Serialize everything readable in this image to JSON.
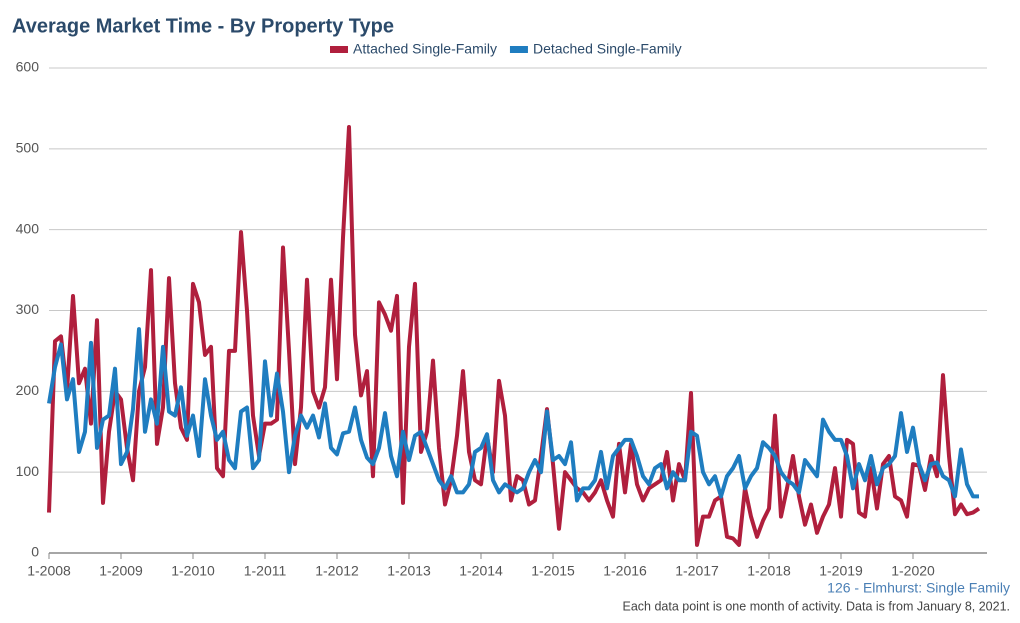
{
  "chart_data": {
    "type": "line",
    "title": "Average Market Time - By Property Type",
    "footnotes": [
      "126 - Elmhurst: Single Family",
      "Each data point is one month of activity. Data is from January 8, 2021."
    ],
    "categories": [
      "1-2008",
      null,
      null,
      null,
      null,
      null,
      null,
      null,
      null,
      null,
      null,
      null,
      "1-2009",
      null,
      null,
      null,
      null,
      null,
      null,
      null,
      null,
      null,
      null,
      null,
      "1-2010",
      null,
      null,
      null,
      null,
      null,
      null,
      null,
      null,
      null,
      null,
      null,
      "1-2011",
      null,
      null,
      null,
      null,
      null,
      null,
      null,
      null,
      null,
      null,
      null,
      "1-2012",
      null,
      null,
      null,
      null,
      null,
      null,
      null,
      null,
      null,
      null,
      null,
      "1-2013",
      null,
      null,
      null,
      null,
      null,
      null,
      null,
      null,
      null,
      null,
      null,
      "1-2014",
      null,
      null,
      null,
      null,
      null,
      null,
      null,
      null,
      null,
      null,
      null,
      "1-2015",
      null,
      null,
      null,
      null,
      null,
      null,
      null,
      null,
      null,
      null,
      null,
      "1-2016",
      null,
      null,
      null,
      null,
      null,
      null,
      null,
      null,
      null,
      null,
      null,
      "1-2017",
      null,
      null,
      null,
      null,
      null,
      null,
      null,
      null,
      null,
      null,
      null,
      "1-2018",
      null,
      null,
      null,
      null,
      null,
      null,
      null,
      null,
      null,
      null,
      null,
      "1-2019",
      null,
      null,
      null,
      null,
      null,
      null,
      null,
      null,
      null,
      null,
      null,
      "1-2020",
      null,
      null,
      null,
      null,
      null,
      null,
      null,
      null,
      null,
      null,
      null
    ],
    "series": [
      {
        "name": "Attached Single-Family",
        "color": "#b01f3d",
        "values": [
          50,
          262,
          268,
          200,
          318,
          210,
          228,
          160,
          288,
          62,
          150,
          200,
          190,
          130,
          90,
          200,
          230,
          350,
          135,
          180,
          340,
          210,
          155,
          140,
          333,
          310,
          245,
          255,
          105,
          95,
          250,
          250,
          397,
          300,
          170,
          120,
          160,
          160,
          165,
          378,
          250,
          110,
          180,
          338,
          200,
          180,
          205,
          338,
          215,
          390,
          527,
          270,
          195,
          225,
          95,
          310,
          295,
          275,
          318,
          62,
          255,
          333,
          125,
          150,
          238,
          130,
          60,
          90,
          145,
          225,
          125,
          90,
          85,
          145,
          100,
          213,
          170,
          65,
          95,
          90,
          60,
          65,
          120,
          178,
          110,
          30,
          100,
          90,
          80,
          75,
          65,
          75,
          90,
          65,
          45,
          135,
          75,
          135,
          85,
          65,
          80,
          85,
          90,
          125,
          65,
          110,
          90,
          198,
          10,
          45,
          45,
          65,
          70,
          20,
          18,
          10,
          80,
          45,
          20,
          40,
          55,
          170,
          45,
          80,
          120,
          70,
          35,
          60,
          25,
          45,
          60,
          105,
          45,
          140,
          135,
          50,
          45,
          105,
          55,
          110,
          120,
          70,
          65,
          45,
          110,
          108,
          78,
          120,
          95,
          220,
          120,
          48,
          60,
          48,
          50,
          55
        ]
      },
      {
        "name": "Detached Single-Family",
        "color": "#1f7dc0",
        "values": [
          185,
          230,
          258,
          190,
          215,
          125,
          150,
          260,
          130,
          165,
          170,
          228,
          110,
          125,
          178,
          277,
          150,
          190,
          160,
          255,
          175,
          170,
          205,
          145,
          170,
          120,
          215,
          170,
          140,
          150,
          115,
          105,
          175,
          180,
          105,
          115,
          237,
          170,
          222,
          175,
          100,
          145,
          170,
          155,
          170,
          143,
          185,
          130,
          122,
          148,
          150,
          180,
          140,
          118,
          110,
          130,
          173,
          120,
          95,
          150,
          115,
          145,
          150,
          130,
          110,
          90,
          80,
          95,
          75,
          75,
          85,
          125,
          130,
          147,
          90,
          75,
          85,
          80,
          75,
          80,
          100,
          115,
          100,
          175,
          115,
          120,
          110,
          137,
          65,
          80,
          80,
          90,
          125,
          80,
          120,
          130,
          140,
          140,
          120,
          95,
          85,
          105,
          110,
          80,
          100,
          90,
          90,
          150,
          145,
          100,
          85,
          95,
          70,
          95,
          105,
          120,
          80,
          95,
          105,
          137,
          130,
          120,
          100,
          90,
          85,
          75,
          115,
          105,
          95,
          165,
          150,
          140,
          140,
          120,
          80,
          110,
          90,
          120,
          85,
          105,
          110,
          120,
          173,
          125,
          155,
          110,
          90,
          110,
          112,
          95,
          90,
          70,
          128,
          85,
          70,
          70
        ]
      }
    ],
    "ylim": [
      0,
      600
    ],
    "yticks": [
      0,
      100,
      200,
      300,
      400,
      500,
      600
    ],
    "grid": true
  }
}
